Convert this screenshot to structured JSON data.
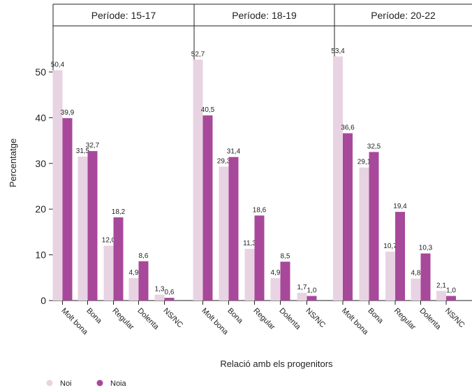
{
  "chart_data": {
    "type": "bar",
    "ylabel": "Percentatge",
    "xlabel": "Relació amb els progenitors",
    "ylim": [
      0,
      60
    ],
    "yticks": [
      0,
      10,
      20,
      30,
      40,
      50
    ],
    "categories": [
      "Molt bona",
      "Bona",
      "Regular",
      "Dolenta",
      "NS/NC"
    ],
    "legend_position": "bottom-left",
    "series": [
      {
        "name": "Noi",
        "color": "#e8d3e3"
      },
      {
        "name": "Noia",
        "color": "#a8489a"
      }
    ],
    "panels": [
      {
        "title": "Període: 15-17",
        "values": [
          [
            50.4,
            31.5,
            12.0,
            4.9,
            1.3
          ],
          [
            39.9,
            32.7,
            18.2,
            8.6,
            0.6
          ]
        ],
        "labels": [
          [
            "50,4",
            "31,5",
            "12,0",
            "4,9",
            "1,3"
          ],
          [
            "39,9",
            "32,7",
            "18,2",
            "8,6",
            "0,6"
          ]
        ]
      },
      {
        "title": "Període: 18-19",
        "values": [
          [
            52.7,
            29.3,
            11.3,
            4.9,
            1.7
          ],
          [
            40.5,
            31.4,
            18.6,
            8.5,
            1.0
          ]
        ],
        "labels": [
          [
            "52,7",
            "29,3",
            "11,3",
            "4,9",
            "1,7"
          ],
          [
            "40,5",
            "31,4",
            "18,6",
            "8,5",
            "1,0"
          ]
        ]
      },
      {
        "title": "Període: 20-22",
        "values": [
          [
            53.4,
            29.1,
            10.7,
            4.8,
            2.1
          ],
          [
            36.6,
            32.5,
            19.4,
            10.3,
            1.0
          ]
        ],
        "labels": [
          [
            "53,4",
            "29,1",
            "10,7",
            "4,8",
            "2,1"
          ],
          [
            "36,6",
            "32,5",
            "19,4",
            "10,3",
            "1,0"
          ]
        ]
      }
    ]
  }
}
